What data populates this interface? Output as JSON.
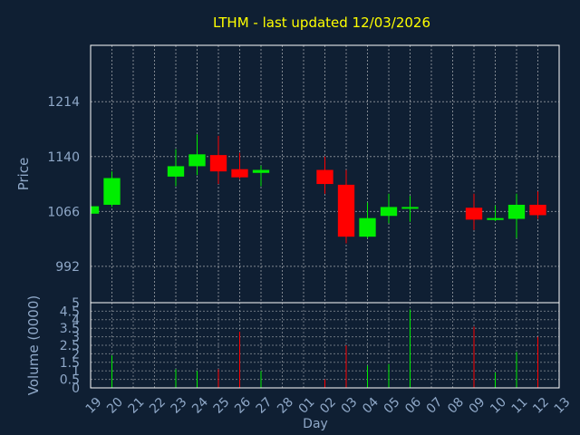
{
  "chart_data": {
    "type": "candlestick",
    "title": "LTHM - last updated 12/03/2026",
    "xlabel": "Day",
    "price_panel": {
      "ylabel": "Price",
      "yticks": [
        992,
        1066,
        1140,
        1214
      ],
      "ylim": [
        943,
        1290
      ]
    },
    "volume_panel": {
      "ylabel": "Volume (0000)",
      "yticks": [
        "0",
        "0.5",
        "1",
        "1.5",
        "2",
        "2.5",
        "3",
        "3.5",
        "4",
        "4.5",
        "5"
      ],
      "ylim": [
        0,
        5
      ]
    },
    "x_tick_labels": [
      "19",
      "20",
      "21",
      "22",
      "23",
      "24",
      "25",
      "26",
      "27",
      "28",
      "01",
      "02",
      "03",
      "04",
      "05",
      "06",
      "07",
      "08",
      "09",
      "10",
      "11",
      "12",
      "13"
    ],
    "candles": [
      {
        "x": "19",
        "open": 1063,
        "close": 1073,
        "high": 1075,
        "low": 1062,
        "volume": 0
      },
      {
        "x": "20",
        "open": 1075,
        "close": 1111,
        "high": 1120,
        "low": 1072,
        "volume": 1.9
      },
      {
        "x": "23",
        "open": 1113,
        "close": 1127,
        "high": 1150,
        "low": 1100,
        "volume": 1.1
      },
      {
        "x": "24",
        "open": 1127,
        "close": 1143,
        "high": 1170,
        "low": 1115,
        "volume": 1.0
      },
      {
        "x": "25",
        "open": 1142,
        "close": 1120,
        "high": 1168,
        "low": 1103,
        "volume": 1.1
      },
      {
        "x": "26",
        "open": 1123,
        "close": 1112,
        "high": 1145,
        "low": 1110,
        "volume": 3.3
      },
      {
        "x": "27",
        "open": 1118,
        "close": 1122,
        "high": 1128,
        "low": 1100,
        "volume": 1.0
      },
      {
        "x": "02",
        "open": 1122,
        "close": 1103,
        "high": 1140,
        "low": 1090,
        "volume": 0.5
      },
      {
        "x": "03",
        "open": 1102,
        "close": 1032,
        "high": 1122,
        "low": 1023,
        "volume": 2.5
      },
      {
        "x": "04",
        "open": 1032,
        "close": 1057,
        "high": 1078,
        "low": 1030,
        "volume": 1.3
      },
      {
        "x": "05",
        "open": 1060,
        "close": 1072,
        "high": 1090,
        "low": 1050,
        "volume": 1.4
      },
      {
        "x": "06",
        "open": 1070,
        "close": 1072,
        "high": 1087,
        "low": 1052,
        "volume": 4.6
      },
      {
        "x": "09",
        "open": 1071,
        "close": 1055,
        "high": 1090,
        "low": 1041,
        "volume": 3.6
      },
      {
        "x": "10",
        "open": 1055,
        "close": 1057,
        "high": 1074,
        "low": 1053,
        "volume": 0.9
      },
      {
        "x": "11",
        "open": 1056,
        "close": 1075,
        "high": 1090,
        "low": 1030,
        "volume": 2.1
      },
      {
        "x": "12",
        "open": 1075,
        "close": 1061,
        "high": 1093,
        "low": 1056,
        "volume": 3.0
      }
    ]
  },
  "colors": {
    "background": "#0f1f33",
    "panel_border": "#ffffff",
    "grid": "#dddddd",
    "title": "#ffff00",
    "axis_text": "#8fa8c8",
    "up": "#00ee00",
    "down": "#ff0000"
  }
}
